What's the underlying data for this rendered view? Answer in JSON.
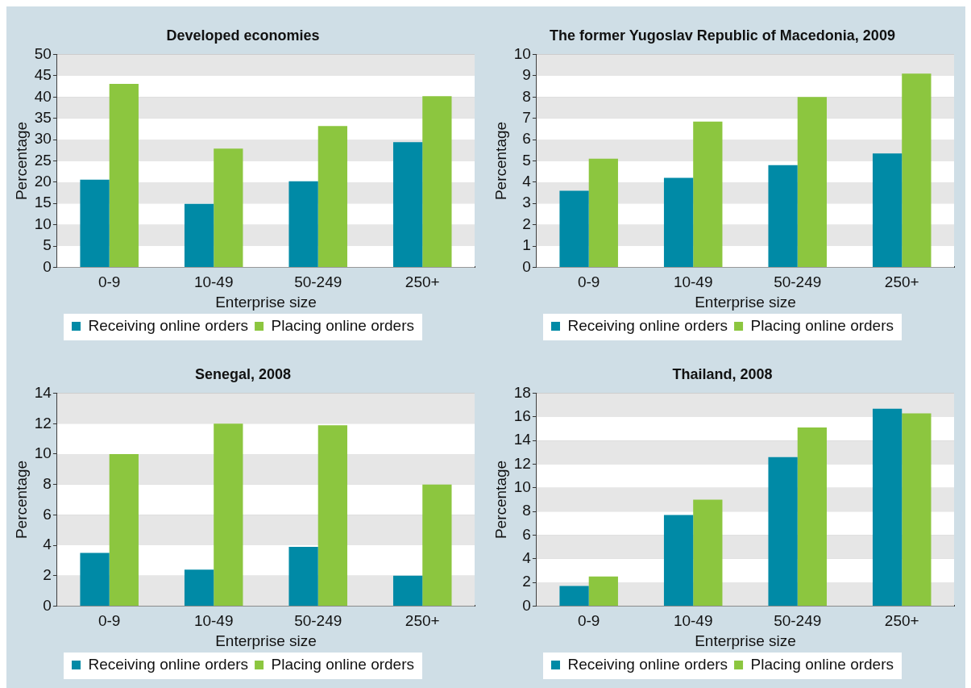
{
  "chart_data": [
    {
      "type": "bar",
      "title": "Developed economies",
      "xlabel": "Enterprise size",
      "ylabel": "Percentage",
      "categories": [
        "0-9",
        "10-49",
        "50-249",
        "250+"
      ],
      "series": [
        {
          "name": "Receiving online orders",
          "color": "#008aa6",
          "values": [
            20.6,
            14.9,
            20.2,
            29.4
          ]
        },
        {
          "name": "Placing online orders",
          "color": "#8cc63f",
          "values": [
            43.1,
            27.9,
            33.2,
            40.2
          ]
        }
      ],
      "ylim": [
        0,
        50
      ],
      "yticks": [
        0,
        5,
        10,
        15,
        20,
        25,
        30,
        35,
        40,
        45,
        50
      ],
      "grid": "y",
      "legend": "bottom"
    },
    {
      "type": "bar",
      "title": "The former Yugoslav Republic of Macedonia, 2009",
      "xlabel": "Enterprise size",
      "ylabel": "Percentage",
      "categories": [
        "0-9",
        "10-49",
        "50-249",
        "250+"
      ],
      "series": [
        {
          "name": "Receiving online orders",
          "color": "#008aa6",
          "values": [
            3.6,
            4.2,
            4.8,
            5.35
          ]
        },
        {
          "name": "Placing online orders",
          "color": "#8cc63f",
          "values": [
            5.1,
            6.85,
            8.0,
            9.1
          ]
        }
      ],
      "ylim": [
        0,
        10
      ],
      "yticks": [
        0,
        1,
        2,
        3,
        4,
        5,
        6,
        7,
        8,
        9,
        10
      ],
      "grid": "y",
      "legend": "bottom"
    },
    {
      "type": "bar",
      "title": "Senegal, 2008",
      "xlabel": "Enterprise size",
      "ylabel": "Percentage",
      "categories": [
        "0-9",
        "10-49",
        "50-249",
        "250+"
      ],
      "series": [
        {
          "name": "Receiving online orders",
          "color": "#008aa6",
          "values": [
            3.5,
            2.4,
            3.9,
            2.0
          ]
        },
        {
          "name": "Placing online orders",
          "color": "#8cc63f",
          "values": [
            10.0,
            12.0,
            11.9,
            8.0
          ]
        }
      ],
      "ylim": [
        0,
        14
      ],
      "yticks": [
        0,
        2,
        4,
        6,
        8,
        10,
        12,
        14
      ],
      "grid": "y",
      "legend": "bottom"
    },
    {
      "type": "bar",
      "title": "Thailand, 2008",
      "xlabel": "Enterprise size",
      "ylabel": "Percentage",
      "categories": [
        "0-9",
        "10-49",
        "50-249",
        "250+"
      ],
      "series": [
        {
          "name": "Receiving online orders",
          "color": "#008aa6",
          "values": [
            1.7,
            7.7,
            12.6,
            16.7
          ]
        },
        {
          "name": "Placing online orders",
          "color": "#8cc63f",
          "values": [
            2.5,
            9.0,
            15.1,
            16.3
          ]
        }
      ],
      "ylim": [
        0,
        18
      ],
      "yticks": [
        0,
        2,
        4,
        6,
        8,
        10,
        12,
        14,
        16,
        18
      ],
      "grid": "y",
      "legend": "bottom"
    }
  ]
}
